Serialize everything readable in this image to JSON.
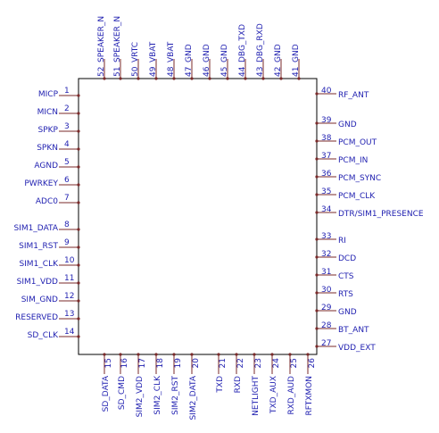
{
  "pins": {
    "left": [
      {
        "number": 1,
        "label": "MICP"
      },
      {
        "number": 2,
        "label": "MICN"
      },
      {
        "number": 3,
        "label": "SPKP"
      },
      {
        "number": 4,
        "label": "SPKN"
      },
      {
        "number": 5,
        "label": "AGND"
      },
      {
        "number": 6,
        "label": "PWRKEY"
      },
      {
        "number": 7,
        "label": "ADC0"
      },
      {
        "number": 8,
        "label": "SIM1_DATA"
      },
      {
        "number": 9,
        "label": "SIM1_RST"
      },
      {
        "number": 10,
        "label": "SIM1_CLK"
      },
      {
        "number": 11,
        "label": "SIM1_VDD"
      },
      {
        "number": 12,
        "label": "SIM_GND"
      },
      {
        "number": 13,
        "label": "RESERVED"
      },
      {
        "number": 14,
        "label": "SD_CLK"
      }
    ],
    "right": [
      {
        "number": 40,
        "label": "RF_ANT"
      },
      {
        "number": 39,
        "label": "GND"
      },
      {
        "number": 38,
        "label": "PCM_OUT"
      },
      {
        "number": 37,
        "label": "PCM_IN"
      },
      {
        "number": 36,
        "label": "PCM_SYNC"
      },
      {
        "number": 35,
        "label": "PCM_CLK"
      },
      {
        "number": 34,
        "label": "DTR/SIM1_PRESENCE"
      },
      {
        "number": 33,
        "label": "RI"
      },
      {
        "number": 32,
        "label": "DCD"
      },
      {
        "number": 31,
        "label": "CTS"
      },
      {
        "number": 30,
        "label": "RTS"
      },
      {
        "number": 29,
        "label": "GND"
      },
      {
        "number": 28,
        "label": "BT_ANT"
      },
      {
        "number": 27,
        "label": "VDD_EXT"
      }
    ],
    "top": [
      {
        "number": 52,
        "label": "SPEAKER_N"
      },
      {
        "number": 51,
        "label": "SPEAKER_N"
      },
      {
        "number": 50,
        "label": "VRTC"
      },
      {
        "number": 49,
        "label": "VBAT"
      },
      {
        "number": 48,
        "label": "VBAT"
      },
      {
        "number": 47,
        "label": "GND"
      },
      {
        "number": 46,
        "label": "GND"
      },
      {
        "number": 45,
        "label": "GND"
      },
      {
        "number": 44,
        "label": "DBG_TXD"
      },
      {
        "number": 43,
        "label": "DBG_RXD"
      },
      {
        "number": 42,
        "label": "GND"
      },
      {
        "number": 41,
        "label": "GND"
      }
    ],
    "bottom": [
      {
        "number": 15,
        "label": "SD_DATA"
      },
      {
        "number": 16,
        "label": "SD_CMD"
      },
      {
        "number": 17,
        "label": "SIM2_VDD"
      },
      {
        "number": 18,
        "label": "SIM2_CLK"
      },
      {
        "number": 19,
        "label": "SIM2_RST"
      },
      {
        "number": 20,
        "label": "SIM2_DATA"
      },
      {
        "number": 21,
        "label": "TXD"
      },
      {
        "number": 22,
        "label": "RXD"
      },
      {
        "number": 23,
        "label": "NETLIGHT"
      },
      {
        "number": 24,
        "label": "TXD_AUX"
      },
      {
        "number": 25,
        "label": "RXD_AUD"
      },
      {
        "number": 26,
        "label": "RFTXMON"
      }
    ]
  }
}
